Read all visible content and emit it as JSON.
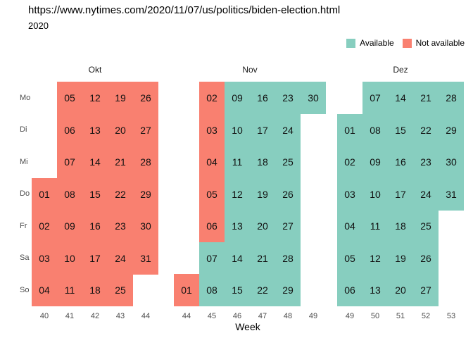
{
  "page": {
    "title": "https://www.nytimes.com/2020/11/07/us/politics/biden-election.html",
    "subtitle": "2020"
  },
  "legend": {
    "position": "top-right",
    "items": [
      {
        "key": "a",
        "label": "Available",
        "color": "#87CEBF"
      },
      {
        "key": "n",
        "label": "Not available",
        "color": "#F98070"
      }
    ]
  },
  "chart_data": {
    "type": "heatmap",
    "title": "https://www.nytimes.com/2020/11/07/us/politics/biden-election.html",
    "subtitle": "2020",
    "xlabel": "Week",
    "row_labels": [
      "Mo",
      "Di",
      "Mi",
      "Do",
      "Fr",
      "Sa",
      "So"
    ],
    "statuses": {
      "a": "Available",
      "n": "Not available"
    },
    "colors": {
      "a": "#87CEBF",
      "n": "#F98070"
    },
    "grid": false,
    "legend_position": "top-right",
    "cell_format": "[week_column_index, day_row_index, date_label, status_key]",
    "months": [
      {
        "label": "Okt",
        "week_labels": [
          "40",
          "41",
          "42",
          "43",
          "44"
        ],
        "cells": [
          [
            0,
            3,
            "01",
            "n"
          ],
          [
            0,
            4,
            "02",
            "n"
          ],
          [
            0,
            5,
            "03",
            "n"
          ],
          [
            0,
            6,
            "04",
            "n"
          ],
          [
            1,
            0,
            "05",
            "n"
          ],
          [
            1,
            1,
            "06",
            "n"
          ],
          [
            1,
            2,
            "07",
            "n"
          ],
          [
            1,
            3,
            "08",
            "n"
          ],
          [
            1,
            4,
            "09",
            "n"
          ],
          [
            1,
            5,
            "10",
            "n"
          ],
          [
            1,
            6,
            "11",
            "n"
          ],
          [
            2,
            0,
            "12",
            "n"
          ],
          [
            2,
            1,
            "13",
            "n"
          ],
          [
            2,
            2,
            "14",
            "n"
          ],
          [
            2,
            3,
            "15",
            "n"
          ],
          [
            2,
            4,
            "16",
            "n"
          ],
          [
            2,
            5,
            "17",
            "n"
          ],
          [
            2,
            6,
            "18",
            "n"
          ],
          [
            3,
            0,
            "19",
            "n"
          ],
          [
            3,
            1,
            "20",
            "n"
          ],
          [
            3,
            2,
            "21",
            "n"
          ],
          [
            3,
            3,
            "22",
            "n"
          ],
          [
            3,
            4,
            "23",
            "n"
          ],
          [
            3,
            5,
            "24",
            "n"
          ],
          [
            3,
            6,
            "25",
            "n"
          ],
          [
            4,
            0,
            "26",
            "n"
          ],
          [
            4,
            1,
            "27",
            "n"
          ],
          [
            4,
            2,
            "28",
            "n"
          ],
          [
            4,
            3,
            "29",
            "n"
          ],
          [
            4,
            4,
            "30",
            "n"
          ],
          [
            4,
            5,
            "31",
            "n"
          ]
        ]
      },
      {
        "label": "Nov",
        "week_labels": [
          "44",
          "45",
          "46",
          "47",
          "48",
          "49"
        ],
        "cells": [
          [
            0,
            6,
            "01",
            "n"
          ],
          [
            1,
            0,
            "02",
            "n"
          ],
          [
            1,
            1,
            "03",
            "n"
          ],
          [
            1,
            2,
            "04",
            "n"
          ],
          [
            1,
            3,
            "05",
            "n"
          ],
          [
            1,
            4,
            "06",
            "n"
          ],
          [
            1,
            5,
            "07",
            "a"
          ],
          [
            1,
            6,
            "08",
            "a"
          ],
          [
            2,
            0,
            "09",
            "a"
          ],
          [
            2,
            1,
            "10",
            "a"
          ],
          [
            2,
            2,
            "11",
            "a"
          ],
          [
            2,
            3,
            "12",
            "a"
          ],
          [
            2,
            4,
            "13",
            "a"
          ],
          [
            2,
            5,
            "14",
            "a"
          ],
          [
            2,
            6,
            "15",
            "a"
          ],
          [
            3,
            0,
            "16",
            "a"
          ],
          [
            3,
            1,
            "17",
            "a"
          ],
          [
            3,
            2,
            "18",
            "a"
          ],
          [
            3,
            3,
            "19",
            "a"
          ],
          [
            3,
            4,
            "20",
            "a"
          ],
          [
            3,
            5,
            "21",
            "a"
          ],
          [
            3,
            6,
            "22",
            "a"
          ],
          [
            4,
            0,
            "23",
            "a"
          ],
          [
            4,
            1,
            "24",
            "a"
          ],
          [
            4,
            2,
            "25",
            "a"
          ],
          [
            4,
            3,
            "26",
            "a"
          ],
          [
            4,
            4,
            "27",
            "a"
          ],
          [
            4,
            5,
            "28",
            "a"
          ],
          [
            4,
            6,
            "29",
            "a"
          ],
          [
            5,
            0,
            "30",
            "a"
          ]
        ]
      },
      {
        "label": "Dez",
        "week_labels": [
          "49",
          "50",
          "51",
          "52",
          "53"
        ],
        "cells": [
          [
            0,
            1,
            "01",
            "a"
          ],
          [
            0,
            2,
            "02",
            "a"
          ],
          [
            0,
            3,
            "03",
            "a"
          ],
          [
            0,
            4,
            "04",
            "a"
          ],
          [
            0,
            5,
            "05",
            "a"
          ],
          [
            0,
            6,
            "06",
            "a"
          ],
          [
            1,
            0,
            "07",
            "a"
          ],
          [
            1,
            1,
            "08",
            "a"
          ],
          [
            1,
            2,
            "09",
            "a"
          ],
          [
            1,
            3,
            "10",
            "a"
          ],
          [
            1,
            4,
            "11",
            "a"
          ],
          [
            1,
            5,
            "12",
            "a"
          ],
          [
            1,
            6,
            "13",
            "a"
          ],
          [
            2,
            0,
            "14",
            "a"
          ],
          [
            2,
            1,
            "15",
            "a"
          ],
          [
            2,
            2,
            "16",
            "a"
          ],
          [
            2,
            3,
            "17",
            "a"
          ],
          [
            2,
            4,
            "18",
            "a"
          ],
          [
            2,
            5,
            "19",
            "a"
          ],
          [
            2,
            6,
            "20",
            "a"
          ],
          [
            3,
            0,
            "21",
            "a"
          ],
          [
            3,
            1,
            "22",
            "a"
          ],
          [
            3,
            2,
            "23",
            "a"
          ],
          [
            3,
            3,
            "24",
            "a"
          ],
          [
            3,
            4,
            "25",
            "a"
          ],
          [
            3,
            5,
            "26",
            "a"
          ],
          [
            3,
            6,
            "27",
            "a"
          ],
          [
            4,
            0,
            "28",
            "a"
          ],
          [
            4,
            1,
            "29",
            "a"
          ],
          [
            4,
            2,
            "30",
            "a"
          ],
          [
            4,
            3,
            "31",
            "a"
          ]
        ]
      }
    ]
  }
}
